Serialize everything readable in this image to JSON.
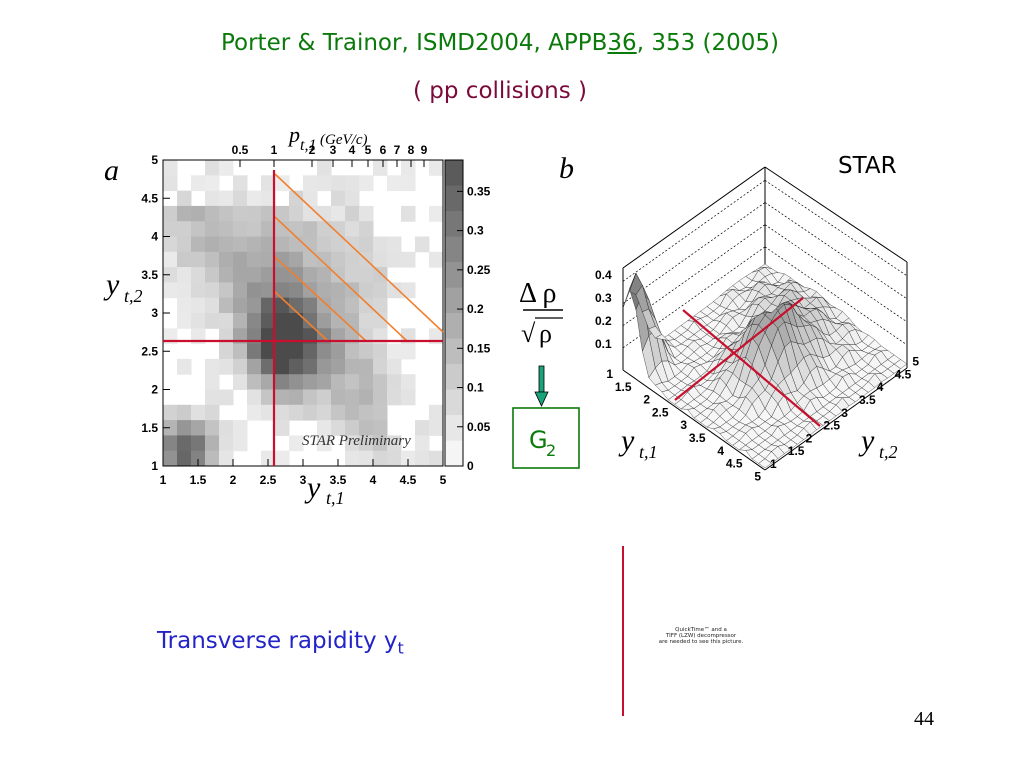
{
  "slide": {
    "title": {
      "pre": "Porter & Trainor, ISMD2004, APPB",
      "volume": "36",
      "post": ", 353 (2005)"
    },
    "subtitle": "( pp collisions )",
    "star_label": "STAR",
    "transverse_label": {
      "text": "Transverse rapidity y",
      "sub": "t"
    },
    "page_number": "44",
    "quicktime_note": [
      "QuickTime™ and a",
      "TIFF (LZW) decompressor",
      "are needed to see this picture."
    ]
  },
  "figure_a": {
    "panel_label": "a",
    "watermark": "STAR Preliminary",
    "x_axis": {
      "sym": "y",
      "sub": "t,1",
      "ticks": [
        "1",
        "1.5",
        "2",
        "2.5",
        "3",
        "3.5",
        "4",
        "4.5",
        "5"
      ]
    },
    "y_axis": {
      "sym": "y",
      "sub": "t,2",
      "ticks": [
        "1",
        "1.5",
        "2",
        "2.5",
        "3",
        "3.5",
        "4",
        "4.5",
        "5"
      ]
    },
    "top_axis": {
      "sym": "p",
      "sub": "t,1",
      "unit": "(GeV/c)",
      "ticks": [
        "0.5",
        "1",
        "2",
        "3",
        "4",
        "5",
        "6",
        "7",
        "8",
        "9"
      ]
    },
    "colorbar_ticks": [
      "0",
      "0.05",
      "0.1",
      "0.15",
      "0.2",
      "0.25",
      "0.3",
      "0.35"
    ]
  },
  "figure_b": {
    "panel_label": "b",
    "z_ticks": [
      "0.1",
      "0.2",
      "0.3",
      "0.4"
    ],
    "x_axis": {
      "sym": "y",
      "sub": "t,1",
      "ticks": [
        "1",
        "1.5",
        "2",
        "2.5",
        "3",
        "3.5",
        "4",
        "4.5",
        "5"
      ]
    },
    "y_axis": {
      "sym": "y",
      "sub": "t,2",
      "ticks": [
        "1",
        "1.5",
        "2",
        "2.5",
        "3",
        "3.5",
        "4",
        "4.5",
        "5"
      ]
    }
  },
  "ratio_box": {
    "numerator": "Δ ρ",
    "denominator_radical": "√",
    "denominator": "ρ",
    "result": "G",
    "result_sub": "2"
  }
}
